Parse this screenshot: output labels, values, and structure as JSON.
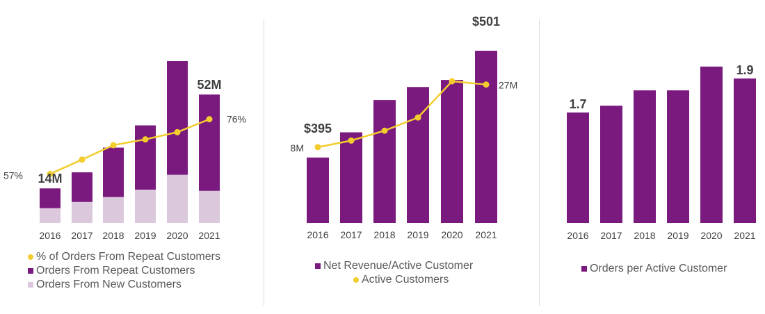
{
  "colors": {
    "purple": "#7a1a7f",
    "light_purple": "#dcc8dd",
    "gold": "#f2cd2d"
  },
  "chart_data": [
    {
      "type": "bar",
      "stacked": true,
      "categories": [
        "2016",
        "2017",
        "2018",
        "2019",
        "2020",
        "2021"
      ],
      "series": [
        {
          "name": "Orders From New Customers",
          "kind": "bar",
          "values": [
            6,
            8.5,
            10.5,
            13.5,
            19.5,
            13
          ]
        },
        {
          "name": "Orders From Repeat Customers",
          "kind": "bar",
          "values": [
            8,
            12,
            20,
            26,
            46,
            39
          ]
        },
        {
          "name": "% of Orders From Repeat Customers",
          "kind": "line",
          "values": [
            57,
            62,
            67,
            69,
            71.5,
            76
          ]
        }
      ],
      "bar_total_callouts": [
        {
          "index": 0,
          "text": "14M"
        },
        {
          "index": 5,
          "text": "52M"
        }
      ],
      "line_callouts": [
        {
          "index": 0,
          "text": "57%"
        },
        {
          "index": 5,
          "text": "76%"
        }
      ],
      "bar_ylim": [
        0,
        70
      ],
      "line_ylim": [
        40,
        100
      ],
      "legend": [
        {
          "label": "% of Orders From Repeat Customers",
          "marker": "dot"
        },
        {
          "label": "Orders From Repeat Customers",
          "marker": "square"
        },
        {
          "label": "Orders From New Customers",
          "marker": "square-light"
        }
      ]
    },
    {
      "type": "bar",
      "categories": [
        "2016",
        "2017",
        "2018",
        "2019",
        "2020",
        "2021"
      ],
      "series": [
        {
          "name": "Net Revenue/Active Customer",
          "kind": "bar",
          "values": [
            395,
            420,
            452,
            465,
            472,
            501
          ]
        },
        {
          "name": "Active Customers",
          "kind": "line",
          "values": [
            8,
            10,
            13,
            17,
            28,
            27
          ]
        }
      ],
      "bar_callouts": [
        {
          "index": 0,
          "text": "$395"
        },
        {
          "index": 5,
          "text": "$501"
        }
      ],
      "line_callouts": [
        {
          "index": 0,
          "text": "8M"
        },
        {
          "index": 5,
          "text": "27M"
        }
      ],
      "bar_ylim": [
        330,
        510
      ],
      "line_ylim": [
        -15,
        40
      ],
      "legend": [
        {
          "label": "Net Revenue/Active Customer",
          "marker": "square"
        },
        {
          "label": "Active Customers",
          "marker": "dot"
        }
      ]
    },
    {
      "type": "bar",
      "categories": [
        "2016",
        "2017",
        "2018",
        "2019",
        "2020",
        "2021"
      ],
      "series": [
        {
          "name": "Orders per Active Customer",
          "kind": "bar",
          "values": [
            1.7,
            1.74,
            1.83,
            1.83,
            1.97,
            1.9
          ]
        }
      ],
      "bar_callouts": [
        {
          "index": 0,
          "text": "1.7"
        },
        {
          "index": 5,
          "text": "1.9"
        }
      ],
      "bar_ylim": [
        1.05,
        2.1
      ],
      "legend": [
        {
          "label": "Orders per Active Customer",
          "marker": "square"
        }
      ]
    }
  ]
}
